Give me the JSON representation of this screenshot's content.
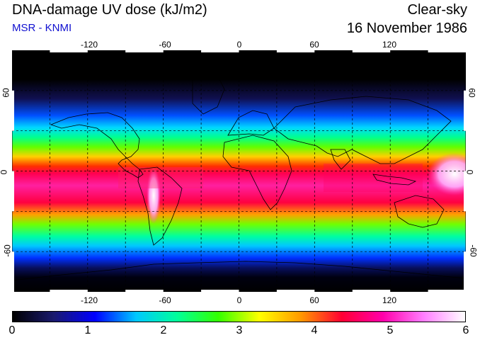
{
  "header": {
    "title": "DNA-damage UV dose (kJ/m2)",
    "credit": "MSR - KNMI",
    "mode": "Clear-sky",
    "date": "16 November 1986"
  },
  "axes": {
    "lon_ticks": [
      "-120",
      "-60",
      "0",
      "60",
      "120"
    ],
    "lat_ticks": [
      "60",
      "0",
      "-60"
    ],
    "lon_values": [
      -120,
      -60,
      0,
      60,
      120
    ],
    "lat_values": [
      60,
      0,
      -60
    ],
    "lon_range": [
      -180,
      180
    ],
    "lat_range": [
      -90,
      90
    ],
    "grid_spacing_deg": 30
  },
  "colorbar": {
    "labels": [
      "0",
      "1",
      "2",
      "3",
      "4",
      "5",
      "6"
    ],
    "range": [
      0,
      6
    ],
    "colors": [
      "#000000",
      "#1a1a6e",
      "#0000ff",
      "#00c8ff",
      "#00ff9a",
      "#33ff00",
      "#ffff00",
      "#ff9900",
      "#ff0033",
      "#ff00aa",
      "#ff7fff",
      "#ffffff"
    ]
  }
}
